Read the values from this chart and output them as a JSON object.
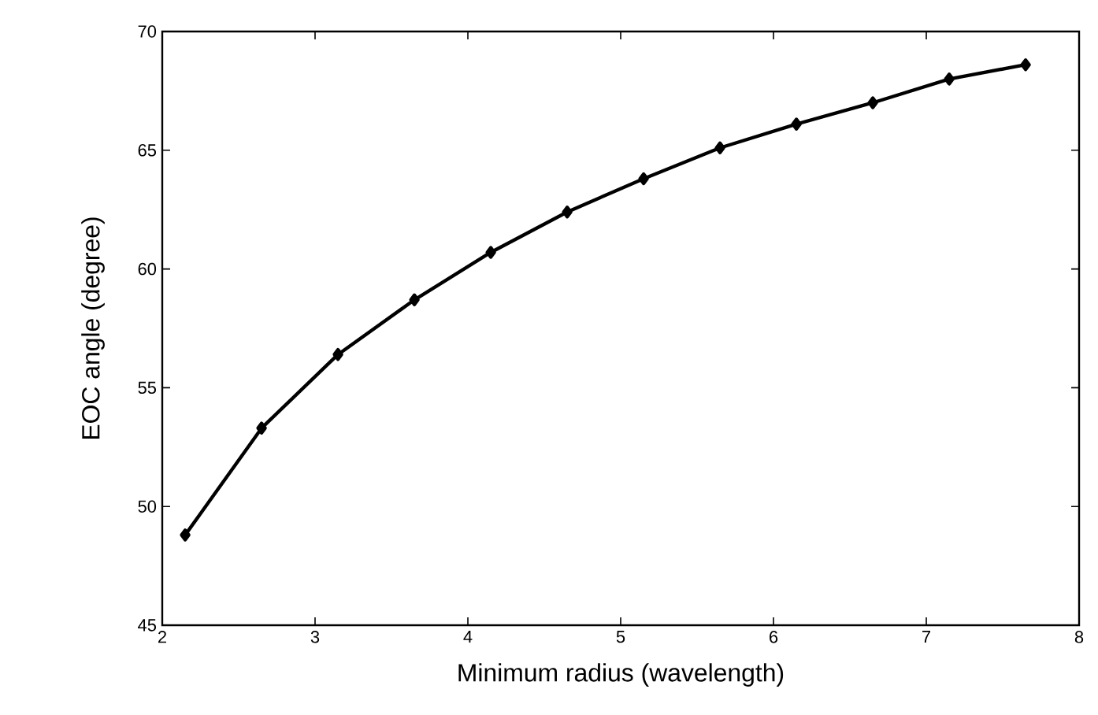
{
  "chart_data": {
    "type": "line",
    "xlabel": "Minimum radius (wavelength)",
    "ylabel": "EOC angle (degree)",
    "x": [
      2.15,
      2.65,
      3.15,
      3.65,
      4.15,
      4.65,
      5.15,
      5.65,
      6.15,
      6.65,
      7.15,
      7.65
    ],
    "series": [
      {
        "color": "#000000",
        "values": [
          48.8,
          53.3,
          56.4,
          58.7,
          60.7,
          62.4,
          63.8,
          65.1,
          66.1,
          67.0,
          68.0,
          68.6
        ]
      }
    ],
    "xlim": [
      2,
      8
    ],
    "xticks": [
      2,
      3,
      4,
      5,
      6,
      7,
      8
    ],
    "ylim": [
      45,
      70
    ],
    "yticks": [
      45,
      50,
      55,
      60,
      65,
      70
    ],
    "grid": false,
    "marker": "diamond",
    "line_style": "solid"
  }
}
